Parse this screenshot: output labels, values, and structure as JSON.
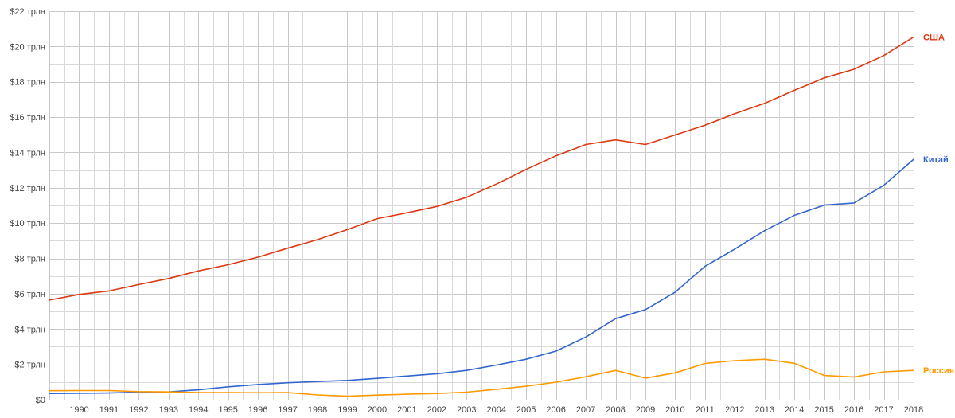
{
  "chart_data": {
    "type": "line",
    "title": "",
    "xlabel": "",
    "ylabel": "",
    "x": [
      1989,
      1990,
      1991,
      1992,
      1993,
      1994,
      1995,
      1996,
      1997,
      1998,
      1999,
      2000,
      2001,
      2002,
      2003,
      2004,
      2005,
      2006,
      2007,
      2008,
      2009,
      2010,
      2011,
      2012,
      2013,
      2014,
      2015,
      2016,
      2017,
      2018
    ],
    "x_tick_labels": [
      "1990",
      "1991",
      "1992",
      "1993",
      "1994",
      "1995",
      "1996",
      "1997",
      "1998",
      "1999",
      "2000",
      "2001",
      "2002",
      "2003",
      "2004",
      "2005",
      "2006",
      "2007",
      "2008",
      "2009",
      "2010",
      "2011",
      "2012",
      "2013",
      "2014",
      "2015",
      "2016",
      "2017",
      "2018"
    ],
    "xlim": [
      1989,
      2018
    ],
    "ylim": [
      0,
      22
    ],
    "y_ticks": [
      0,
      2,
      4,
      6,
      8,
      10,
      12,
      14,
      16,
      18,
      20,
      22
    ],
    "y_tick_labels": [
      "$0",
      "$2 трлн",
      "$4 трлн",
      "$6 трлн",
      "$8 трлн",
      "$10 трлн",
      "$12 трлн",
      "$14 трлн",
      "$16 трлн",
      "$18 трлн",
      "$20 трлн",
      "$22 трлн"
    ],
    "grid": true,
    "minor_grid": true,
    "legend": "series labels at right end",
    "series": [
      {
        "name": "США",
        "color": "#dc3912",
        "values": [
          5.64,
          5.96,
          6.16,
          6.52,
          6.86,
          7.29,
          7.64,
          8.07,
          8.58,
          9.06,
          9.63,
          10.25,
          10.58,
          10.94,
          11.46,
          12.21,
          13.04,
          13.81,
          14.45,
          14.71,
          14.45,
          14.99,
          15.54,
          16.2,
          16.78,
          17.52,
          18.22,
          18.71,
          19.49,
          20.54
        ]
      },
      {
        "name": "Китай",
        "color": "#3366cc",
        "values": [
          0.35,
          0.36,
          0.38,
          0.43,
          0.44,
          0.56,
          0.73,
          0.86,
          0.96,
          1.03,
          1.09,
          1.21,
          1.34,
          1.47,
          1.66,
          1.96,
          2.29,
          2.75,
          3.55,
          4.59,
          5.1,
          6.09,
          7.55,
          8.53,
          9.57,
          10.44,
          11.02,
          11.14,
          12.14,
          13.61
        ]
      },
      {
        "name": "Россия",
        "color": "#ff9900",
        "values": [
          0.51,
          0.52,
          0.52,
          0.46,
          0.44,
          0.4,
          0.4,
          0.39,
          0.4,
          0.27,
          0.2,
          0.26,
          0.31,
          0.35,
          0.43,
          0.59,
          0.76,
          0.99,
          1.3,
          1.66,
          1.22,
          1.52,
          2.05,
          2.21,
          2.29,
          2.06,
          1.37,
          1.28,
          1.58,
          1.66
        ]
      }
    ]
  }
}
